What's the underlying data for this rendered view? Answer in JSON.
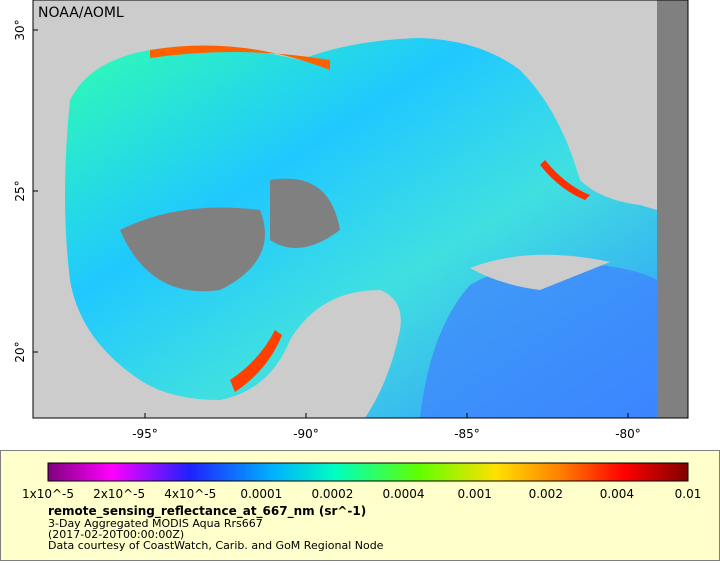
{
  "map": {
    "credit": "NOAA/AOML",
    "lat_labels": [
      "30°",
      "25°",
      "20°"
    ],
    "lon_labels": [
      "-95°",
      "-90°",
      "-85°",
      "-80°"
    ]
  },
  "legend": {
    "labels": [
      "1x10^-5",
      "2x10^-5",
      "4x10^-5",
      "0.0001",
      "0.0002",
      "0.0004",
      "0.001",
      "0.002",
      "0.004",
      "0.01"
    ],
    "title": "remote_sensing_reflectance_at_667_nm (sr^-1)",
    "lines": [
      "3-Day Aggregated MODIS Aqua Rrs667",
      "(2017-02-20T00:00:00Z)",
      "Data courtesy of CoastWatch, Carib. and GoM Regional Node"
    ]
  }
}
